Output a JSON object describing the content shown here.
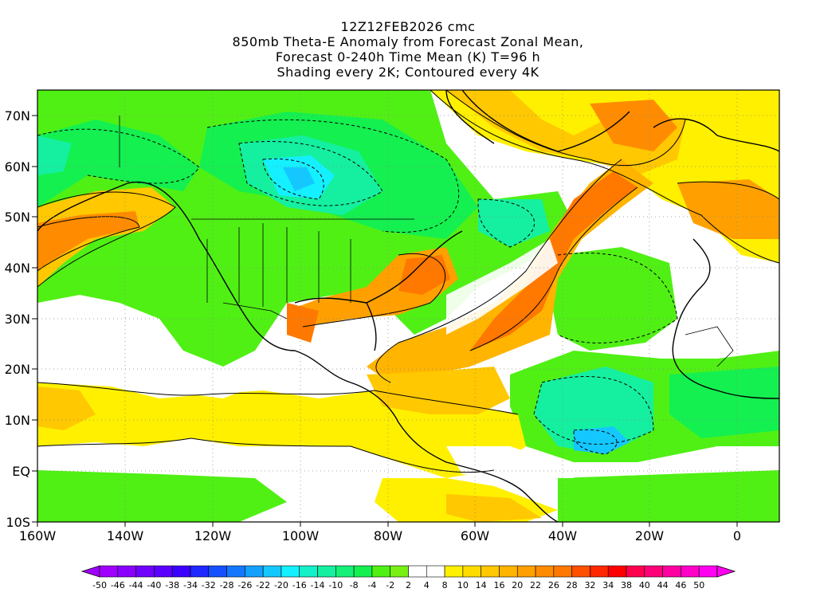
{
  "title": {
    "line1": "12Z12FEB2026 cmc",
    "line2": "850mb Theta-E Anomaly from Forecast Zonal Mean,",
    "line3": "Forecast 0-240h Time Mean (K) T=96 h",
    "line4": "Shading every 2K; Contoured every 4K"
  },
  "map": {
    "lat_labels": [
      "70N",
      "60N",
      "50N",
      "40N",
      "30N",
      "20N",
      "10N",
      "EQ",
      "10S"
    ],
    "lon_labels": [
      "160W",
      "140W",
      "120W",
      "100W",
      "80W",
      "60W",
      "40W",
      "20W",
      "0"
    ],
    "extent": {
      "lon_min": -160,
      "lon_max": 10,
      "lat_min": -10,
      "lat_max": 75
    }
  },
  "colorbar": {
    "labels": [
      "-50",
      "-46",
      "-44",
      "-40",
      "-38",
      "-34",
      "-32",
      "-28",
      "-26",
      "-22",
      "-20",
      "-16",
      "-14",
      "-10",
      "-8",
      "-4",
      "-2",
      "2",
      "4",
      "8",
      "10",
      "14",
      "16",
      "20",
      "22",
      "26",
      "28",
      "32",
      "34",
      "38",
      "40",
      "44",
      "46",
      "50"
    ],
    "colors": [
      "#a000ff",
      "#8a00ff",
      "#7000ff",
      "#5a00ff",
      "#3c00ff",
      "#1e28ff",
      "#1450ff",
      "#1478ff",
      "#14a0ff",
      "#14c8ff",
      "#14f0ff",
      "#14f0c8",
      "#14f0a0",
      "#14f078",
      "#14f050",
      "#50f014",
      "#78f014",
      "#ffffff",
      "#ffffff",
      "#fff000",
      "#ffdc00",
      "#ffc800",
      "#ffb400",
      "#ffa000",
      "#ff8c00",
      "#ff7800",
      "#ff5000",
      "#ff2800",
      "#ff0000",
      "#ff0050",
      "#ff0078",
      "#ff00a0",
      "#ff00c8",
      "#ff00f0"
    ]
  },
  "features": [
    {
      "name": "Gulf of Alaska warm anomaly",
      "level": "20"
    },
    {
      "name": "Central Canada cold anomaly",
      "level": "-22"
    },
    {
      "name": "Western Atlantic warm plume",
      "level": "20"
    },
    {
      "name": "Eastern tropical Atlantic cold anomaly",
      "level": "-20"
    }
  ]
}
